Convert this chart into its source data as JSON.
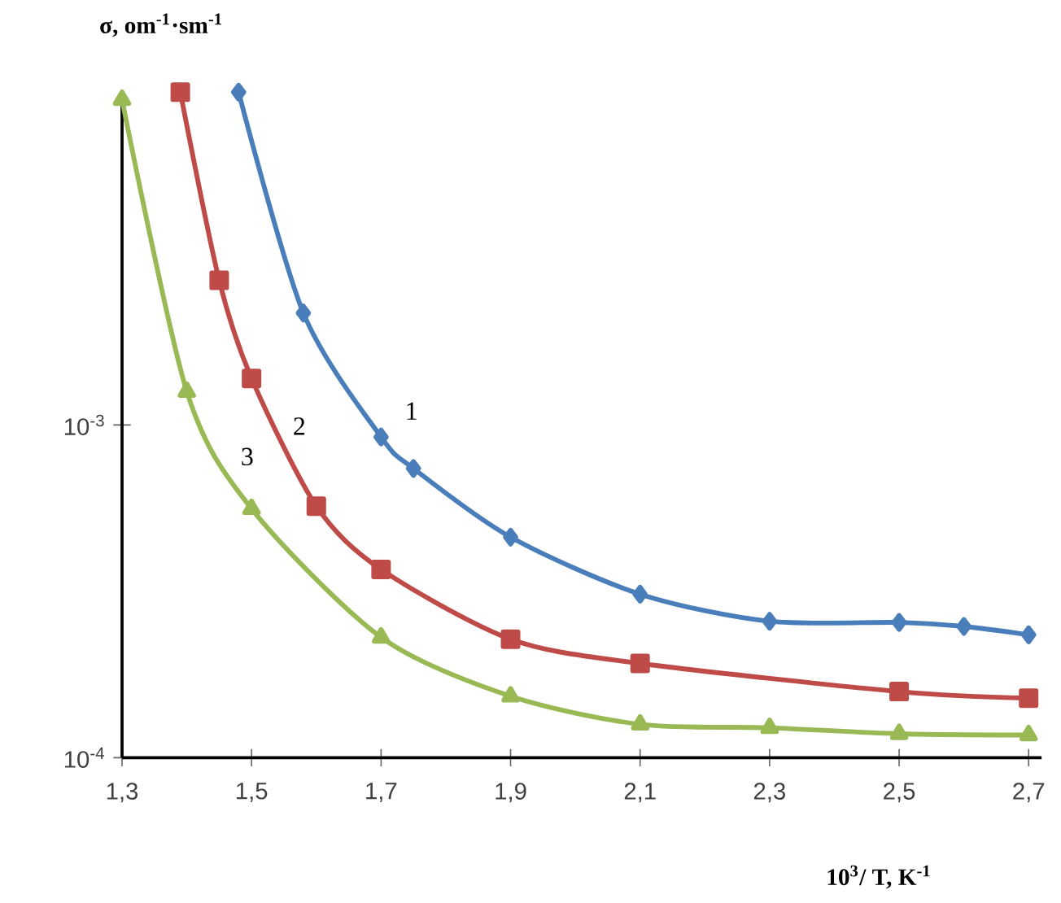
{
  "chart_data": {
    "type": "line",
    "log": "y",
    "xlabel": "10$^{3}$/ T, K$^{-1}$",
    "ylabel": "σ, om$^{-1}$·sm$^{-1}$",
    "xlim": [
      1.3,
      2.72
    ],
    "ylim": [
      0.0001,
      0.01
    ],
    "xticks": [
      {
        "value": 1.3,
        "label": "1,3"
      },
      {
        "value": 1.5,
        "label": "1,5"
      },
      {
        "value": 1.7,
        "label": "1,7"
      },
      {
        "value": 1.9,
        "label": "1,9"
      },
      {
        "value": 2.1,
        "label": "2,1"
      },
      {
        "value": 2.3,
        "label": "2,3"
      },
      {
        "value": 2.5,
        "label": "2,5"
      },
      {
        "value": 2.7,
        "label": "2,7"
      }
    ],
    "yticks": [
      {
        "value": 0.0001,
        "label": "10$^{-4}$"
      },
      {
        "value": 0.001,
        "label": "10$^{-3}$"
      }
    ],
    "series": [
      {
        "name": "1",
        "color": "#4a7ebb",
        "marker": "diamond",
        "x": [
          1.48,
          1.58,
          1.7,
          1.75,
          1.9,
          2.1,
          2.3,
          2.5,
          2.6,
          2.7
        ],
        "values": [
          0.01,
          0.00217,
          0.00092,
          0.00074,
          0.00046,
          0.00031,
          0.000257,
          0.000255,
          0.000248,
          0.000234
        ]
      },
      {
        "name": "2",
        "color": "#be4b48",
        "marker": "square",
        "x": [
          1.39,
          1.45,
          1.5,
          1.6,
          1.7,
          1.9,
          2.1,
          2.5,
          2.7
        ],
        "values": [
          0.01,
          0.00272,
          0.00138,
          0.00057,
          0.000368,
          0.000227,
          0.000192,
          0.000158,
          0.000151
        ]
      },
      {
        "name": "3",
        "color": "#98b954",
        "marker": "triangle",
        "x": [
          1.3,
          1.4,
          1.5,
          1.7,
          1.9,
          2.1,
          2.3,
          2.5,
          2.7
        ],
        "values": [
          0.0095,
          0.00126,
          0.00056,
          0.00023,
          0.000153,
          0.000126,
          0.000123,
          0.000118,
          0.000117
        ]
      }
    ]
  }
}
